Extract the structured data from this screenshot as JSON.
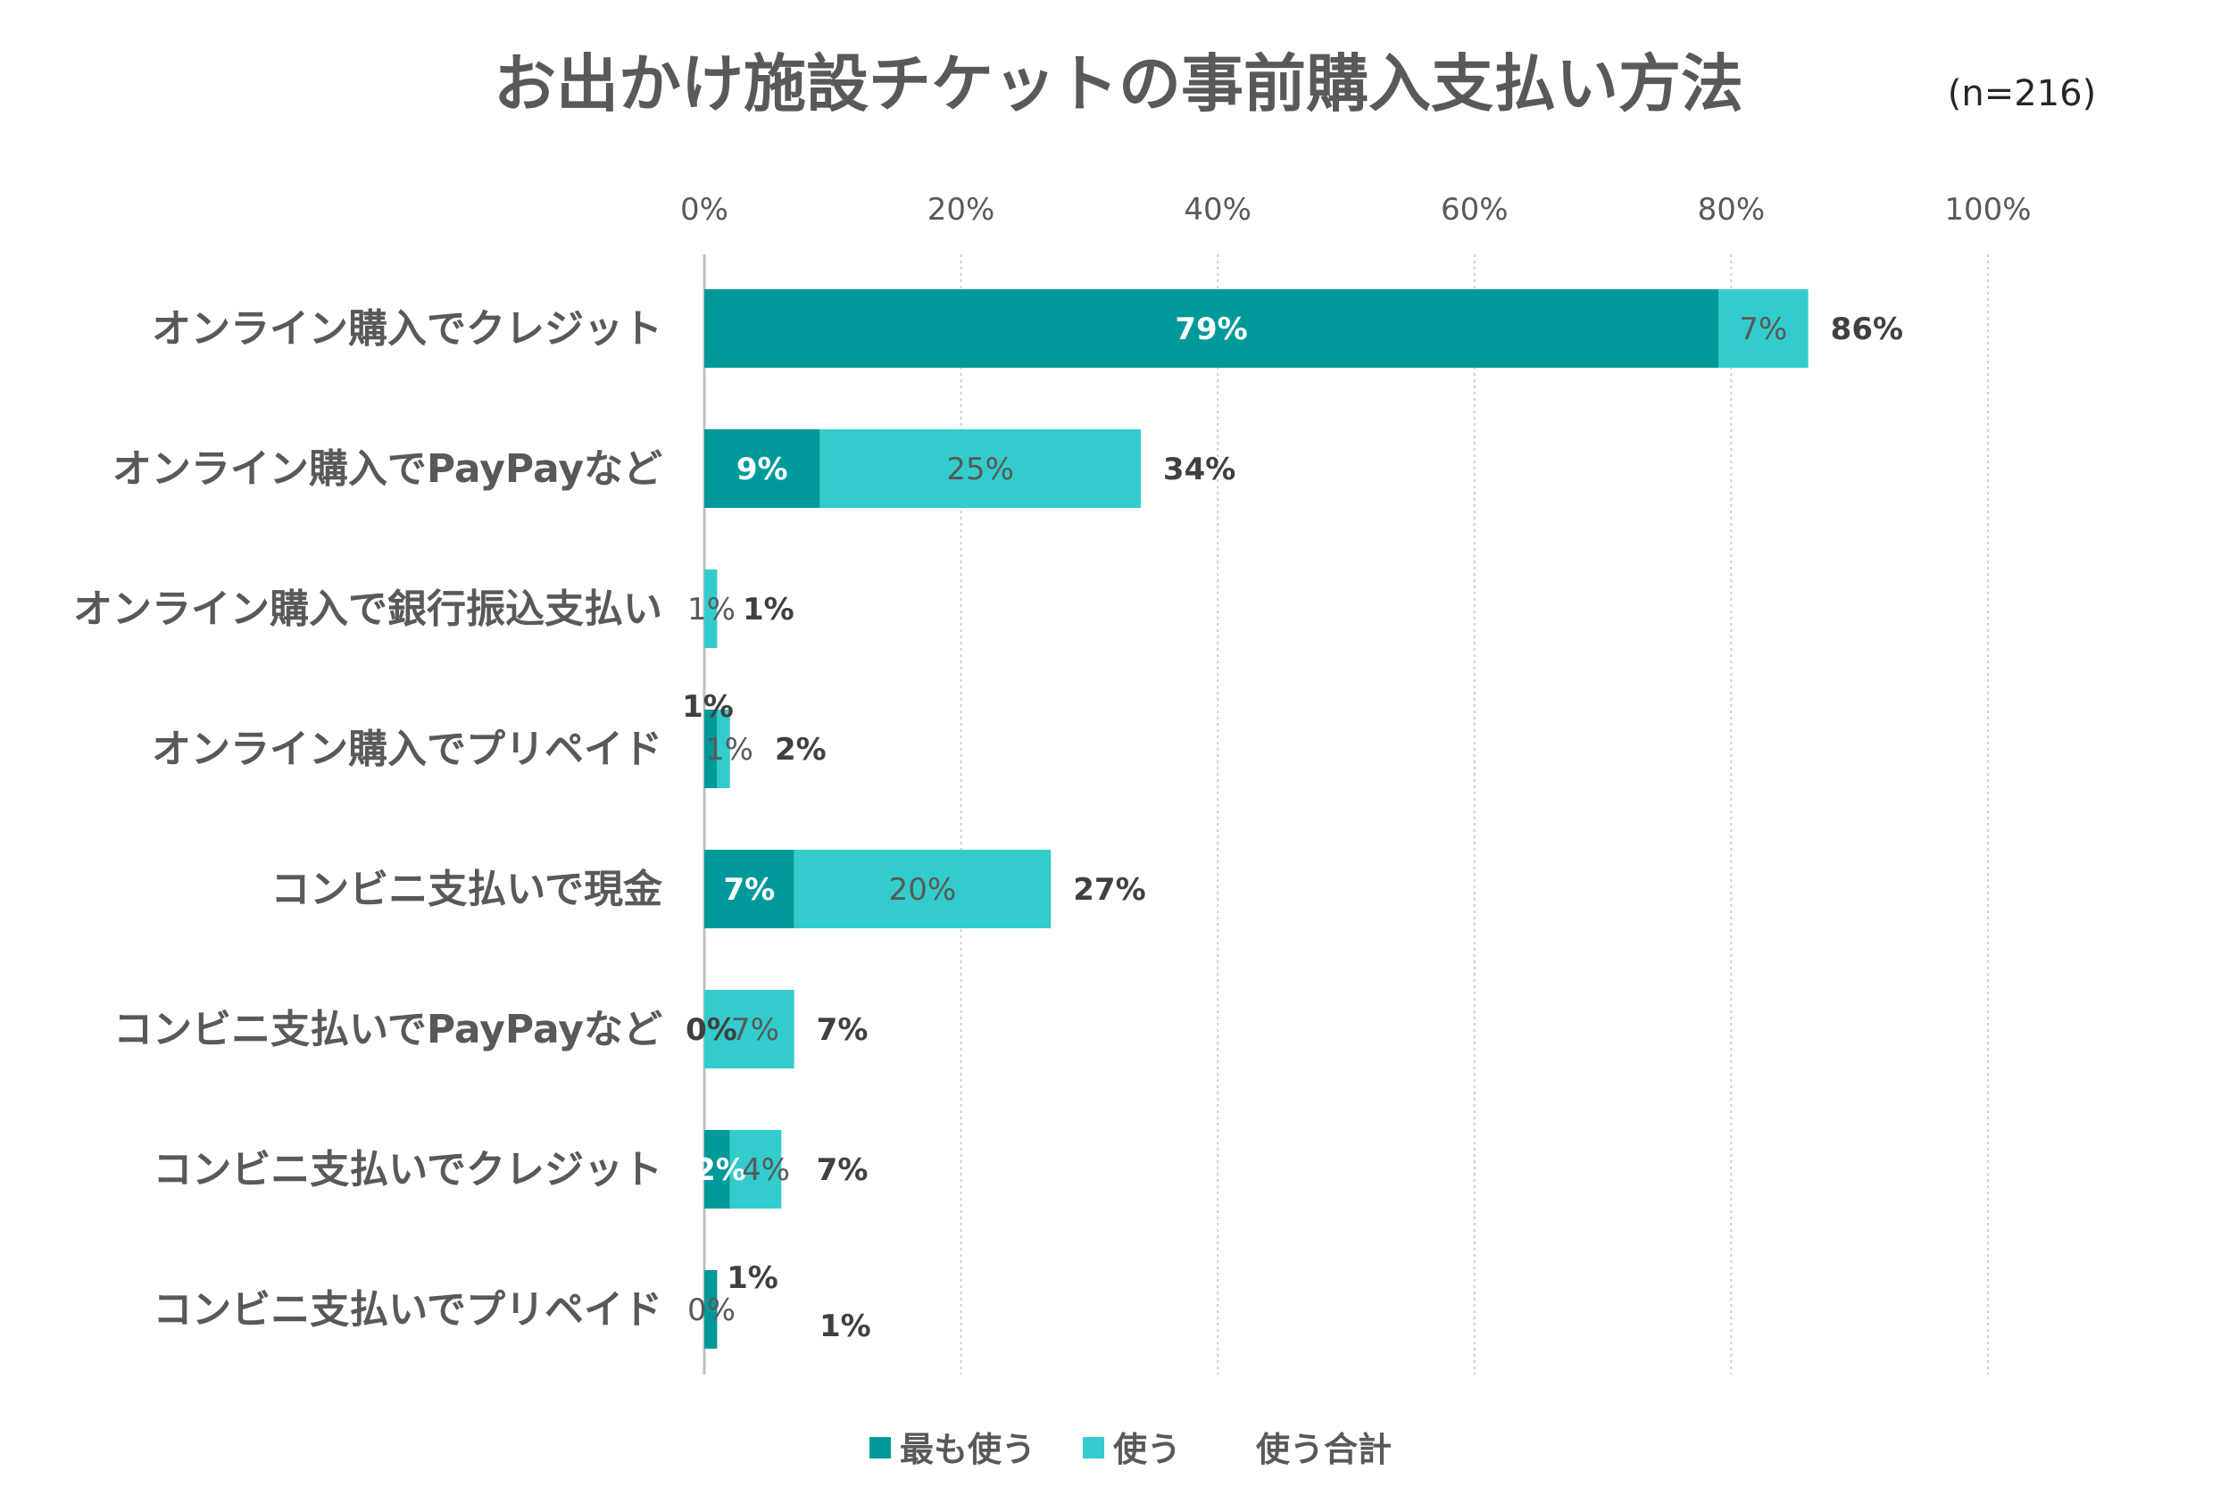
{
  "chart_data": {
    "type": "bar",
    "orientation": "horizontal",
    "stacked": true,
    "title": "お出かけ施設チケットの事前購入支払い方法",
    "sample_size": "(n=216)",
    "categories": [
      "オンライン購入でクレジット",
      "オンライン購入でPayPayなど",
      "オンライン購入で銀行振込支払い",
      "オンライン購入でプリペイド",
      "コンビニ支払いで現金",
      "コンビニ支払いでPayPayなど",
      "コンビニ支払いでクレジット",
      "コンビニ支払いでプリペイド"
    ],
    "series": [
      {
        "name": "最も使う",
        "color": "#009999",
        "values": [
          79,
          9,
          0,
          1,
          7,
          0,
          2,
          1
        ],
        "labels": [
          "79%",
          "9%",
          "",
          "1%",
          "7%",
          "0%",
          "2%",
          "1%"
        ]
      },
      {
        "name": "使う",
        "color": "#33CCCC",
        "values": [
          7,
          25,
          1,
          1,
          20,
          7,
          4,
          0
        ],
        "labels": [
          "7%",
          "25%",
          "1%",
          "1%",
          "20%",
          "7%",
          "4%",
          "0%"
        ]
      }
    ],
    "totals": {
      "name": "使う合計",
      "values": [
        86,
        34,
        1,
        2,
        27,
        7,
        7,
        1
      ],
      "labels": [
        "86%",
        "34%",
        "1%",
        "2%",
        "27%",
        "7%",
        "7%",
        "1%"
      ]
    },
    "x_ticks": [
      "0%",
      "20%",
      "40%",
      "60%",
      "80%",
      "100%"
    ],
    "xlim": [
      0,
      100
    ],
    "x_axis_position": "top",
    "grid": true,
    "legend_position": "bottom"
  }
}
